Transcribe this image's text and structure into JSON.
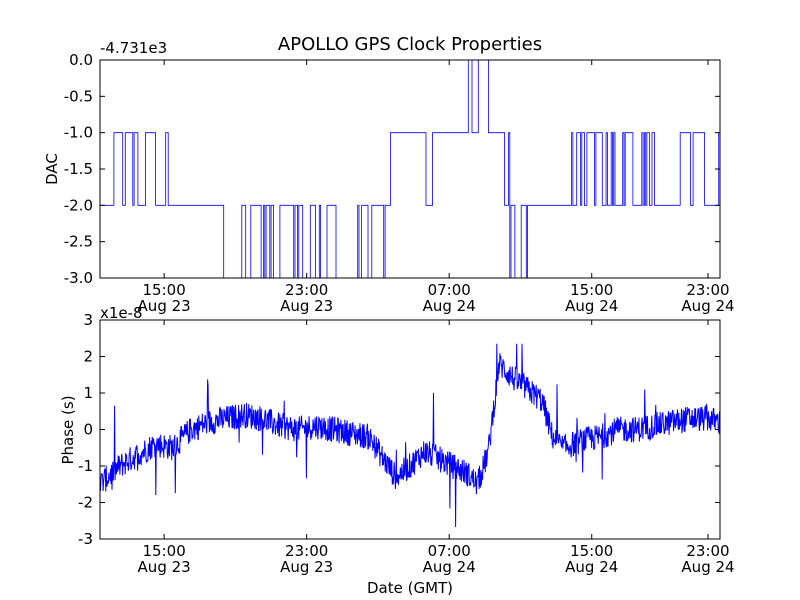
{
  "title": "APOLLO GPS Clock Properties",
  "colors": {
    "line": "#0000ff",
    "axes": "#000000",
    "background": "#ffffff"
  },
  "chart_data": [
    {
      "type": "line",
      "ylabel": "DAC",
      "offset_text": "-4.731e3",
      "ylim": [
        -3.0,
        0.0
      ],
      "yticks": [
        "0.0",
        "-0.5",
        "-1.0",
        "-1.5",
        "-2.0",
        "-2.5",
        "-3.0"
      ],
      "xlim_hours": [
        11.4,
        46.2
      ],
      "xticks": [
        {
          "h": 15,
          "line1": "15:00",
          "line2": "Aug 23"
        },
        {
          "h": 23,
          "line1": "23:00",
          "line2": "Aug 23"
        },
        {
          "h": 31,
          "line1": "07:00",
          "line2": "Aug 24"
        },
        {
          "h": 39,
          "line1": "15:00",
          "line2": "Aug 24"
        },
        {
          "h": 47,
          "line1": "23:00",
          "line2": "Aug 24"
        }
      ],
      "series": [
        {
          "segments": [
            {
              "start": 11.4,
              "end": 15.3,
              "low": -2,
              "high": -1,
              "p": 0.5
            },
            {
              "start": 15.3,
              "end": 18.2,
              "low": -2,
              "high": -2,
              "p": 0.0
            },
            {
              "start": 18.2,
              "end": 20.3,
              "low": -3,
              "high": -2,
              "p": 0.35
            },
            {
              "start": 20.3,
              "end": 22.2,
              "low": -3,
              "high": -2,
              "p": 0.7
            },
            {
              "start": 22.2,
              "end": 26.8,
              "low": -3,
              "high": -2,
              "p": 0.55
            },
            {
              "start": 26.8,
              "end": 27.4,
              "low": -3,
              "high": -2,
              "p": 0.3
            },
            {
              "start": 27.4,
              "end": 27.7,
              "low": -2,
              "high": -2,
              "p": 0.0
            },
            {
              "start": 27.7,
              "end": 29.7,
              "low": -1,
              "high": -1,
              "p": 0.0
            },
            {
              "start": 29.7,
              "end": 30.8,
              "low": -2,
              "high": -1,
              "p": 0.5
            },
            {
              "start": 30.8,
              "end": 32.0,
              "low": -1,
              "high": -1,
              "p": 0.0
            },
            {
              "start": 32.0,
              "end": 33.2,
              "low": -1,
              "high": 0,
              "p": 0.5
            },
            {
              "start": 33.2,
              "end": 33.6,
              "low": -1,
              "high": -1,
              "p": 0.0
            },
            {
              "start": 33.6,
              "end": 34.4,
              "low": -2,
              "high": -1,
              "p": 0.5
            },
            {
              "start": 34.4,
              "end": 35.4,
              "low": -3,
              "high": -2,
              "p": 0.5
            },
            {
              "start": 35.4,
              "end": 37.8,
              "low": -2,
              "high": -2,
              "p": 0.0
            },
            {
              "start": 37.8,
              "end": 42.6,
              "low": -2,
              "high": -1,
              "p": 0.5
            },
            {
              "start": 42.6,
              "end": 46.2,
              "low": -2,
              "high": -1,
              "p": 0.25
            }
          ]
        }
      ]
    },
    {
      "type": "line",
      "ylabel": "Phase (s)",
      "xlabel": "Date (GMT)",
      "offset_text": "x1e-8",
      "ylim": [
        -3,
        3
      ],
      "yticks": [
        "3",
        "2",
        "1",
        "0",
        "-1",
        "-2",
        "-3"
      ],
      "xlim_hours": [
        11.4,
        46.2
      ],
      "xticks": [
        {
          "h": 15,
          "line1": "15:00",
          "line2": "Aug 23"
        },
        {
          "h": 23,
          "line1": "23:00",
          "line2": "Aug 23"
        },
        {
          "h": 31,
          "line1": "07:00",
          "line2": "Aug 24"
        },
        {
          "h": 39,
          "line1": "15:00",
          "line2": "Aug 24"
        },
        {
          "h": 47,
          "line1": "23:00",
          "line2": "Aug 24"
        }
      ],
      "series": [
        {
          "approx_trend": [
            [
              11.4,
              -1.5
            ],
            [
              12.5,
              -1.0
            ],
            [
              13.5,
              -0.7
            ],
            [
              14.5,
              -0.4
            ],
            [
              15.5,
              -0.5
            ],
            [
              16.5,
              0.0
            ],
            [
              17.5,
              0.2
            ],
            [
              18.5,
              0.3
            ],
            [
              19.5,
              0.4
            ],
            [
              20.5,
              0.3
            ],
            [
              21.5,
              0.1
            ],
            [
              22.5,
              0.0
            ],
            [
              23.5,
              0.1
            ],
            [
              24.5,
              0.0
            ],
            [
              25.5,
              -0.1
            ],
            [
              26.5,
              -0.2
            ],
            [
              27.3,
              -0.8
            ],
            [
              28.0,
              -1.3
            ],
            [
              28.8,
              -1.0
            ],
            [
              29.6,
              -0.6
            ],
            [
              30.4,
              -0.8
            ],
            [
              31.2,
              -1.0
            ],
            [
              32.0,
              -1.2
            ],
            [
              32.6,
              -1.5
            ],
            [
              33.2,
              -0.6
            ],
            [
              33.8,
              1.8
            ],
            [
              34.6,
              1.4
            ],
            [
              35.4,
              1.1
            ],
            [
              36.2,
              0.8
            ],
            [
              36.8,
              -0.2
            ],
            [
              37.4,
              -0.5
            ],
            [
              38.5,
              -0.3
            ],
            [
              39.5,
              -0.2
            ],
            [
              40.5,
              0.0
            ],
            [
              41.5,
              0.0
            ],
            [
              42.5,
              0.1
            ],
            [
              43.5,
              0.2
            ],
            [
              44.5,
              0.3
            ],
            [
              45.5,
              0.3
            ],
            [
              46.2,
              0.2
            ]
          ],
          "noise_amplitude": 0.45
        }
      ]
    }
  ]
}
